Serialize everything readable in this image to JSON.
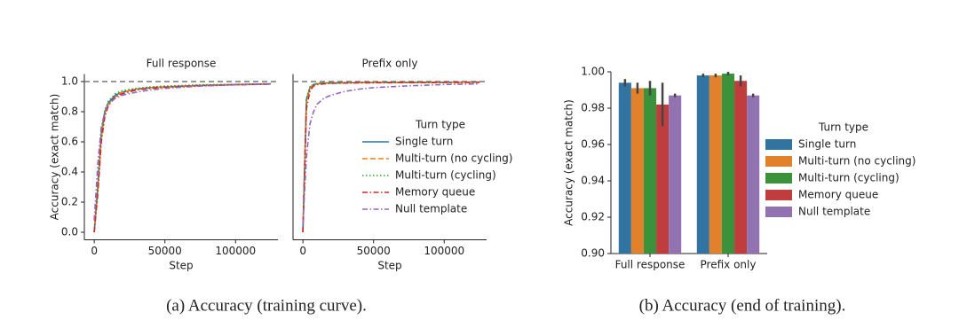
{
  "chart_data": [
    {
      "type": "line",
      "title": "Full response",
      "xlabel": "Step",
      "ylabel": "Accuracy (exact match)",
      "x": [
        0,
        2500,
        5000,
        7500,
        10000,
        15000,
        20000,
        30000,
        40000,
        50000,
        75000,
        100000,
        125000
      ],
      "series": [
        {
          "color": "#1f77b4",
          "dash": "solid",
          "values": [
            0.0,
            0.3,
            0.65,
            0.8,
            0.86,
            0.91,
            0.93,
            0.95,
            0.96,
            0.965,
            0.975,
            0.98,
            0.985
          ]
        },
        {
          "color": "#ff7f0e",
          "dash": "dashed",
          "values": [
            0.0,
            0.28,
            0.63,
            0.79,
            0.85,
            0.9,
            0.93,
            0.95,
            0.96,
            0.965,
            0.975,
            0.98,
            0.985
          ]
        },
        {
          "color": "#2ca02c",
          "dash": "dotted",
          "values": [
            0.0,
            0.3,
            0.66,
            0.81,
            0.87,
            0.92,
            0.94,
            0.955,
            0.965,
            0.97,
            0.978,
            0.982,
            0.985
          ]
        },
        {
          "color": "#d62728",
          "dash": "dashdot",
          "values": [
            0.0,
            0.25,
            0.6,
            0.77,
            0.84,
            0.9,
            0.92,
            0.945,
            0.955,
            0.962,
            0.972,
            0.978,
            0.983
          ]
        },
        {
          "color": "#9467bd",
          "dash": "dashdot",
          "values": [
            0.08,
            0.45,
            0.7,
            0.8,
            0.85,
            0.89,
            0.91,
            0.93,
            0.945,
            0.955,
            0.97,
            0.978,
            0.983
          ]
        }
      ],
      "reference_line": 1.0,
      "xlim": [
        -7000,
        130000
      ],
      "ylim": [
        -0.05,
        1.05
      ],
      "xticks": [
        0,
        50000,
        100000
      ],
      "yticks": [
        {
          "value": 0.0,
          "label": "0.0"
        },
        0.2,
        0.4,
        0.6,
        0.8,
        {
          "value": 1.0,
          "label": "1.0"
        }
      ]
    },
    {
      "type": "line",
      "title": "Prefix only",
      "xlabel": "Step",
      "x": [
        0,
        2500,
        5000,
        7500,
        10000,
        15000,
        20000,
        30000,
        40000,
        50000,
        75000,
        100000,
        125000
      ],
      "legend_title": "Turn type",
      "legend": "right",
      "series": [
        {
          "name": "Single turn",
          "color": "#1f77b4",
          "dash": "solid",
          "values": [
            0.0,
            0.88,
            0.96,
            0.98,
            0.985,
            0.99,
            0.99,
            0.992,
            0.993,
            0.994,
            0.995,
            0.995,
            0.996
          ]
        },
        {
          "name": "Multi-turn (no cycling)",
          "color": "#ff7f0e",
          "dash": "dashed",
          "values": [
            0.0,
            0.87,
            0.955,
            0.978,
            0.985,
            0.99,
            0.99,
            0.992,
            0.993,
            0.994,
            0.995,
            0.995,
            0.996
          ]
        },
        {
          "name": "Multi-turn (cycling)",
          "color": "#2ca02c",
          "dash": "dotted",
          "values": [
            0.0,
            0.89,
            0.965,
            0.982,
            0.988,
            0.991,
            0.992,
            0.993,
            0.994,
            0.995,
            0.996,
            0.996,
            0.997
          ]
        },
        {
          "name": "Memory queue",
          "color": "#d62728",
          "dash": "dashdot",
          "values": [
            0.0,
            0.82,
            0.94,
            0.97,
            0.98,
            0.985,
            0.988,
            0.99,
            0.991,
            0.992,
            0.993,
            0.994,
            0.995
          ]
        },
        {
          "name": "Null template",
          "color": "#9467bd",
          "dash": "dashdot",
          "values": [
            0.05,
            0.5,
            0.72,
            0.8,
            0.85,
            0.89,
            0.91,
            0.935,
            0.95,
            0.96,
            0.972,
            0.98,
            0.985
          ]
        }
      ],
      "reference_line": 1.0,
      "xlim": [
        -7000,
        130000
      ],
      "ylim": [
        -0.05,
        1.05
      ],
      "xticks": [
        0,
        50000,
        100000
      ]
    },
    {
      "type": "bar",
      "ylabel": "Accuracy (exact match)",
      "categories": [
        "Full response",
        "Prefix only"
      ],
      "legend_title": "Turn type",
      "legend": "right",
      "series": [
        {
          "name": "Single turn",
          "color": "#3274a1",
          "values": [
            0.994,
            0.998
          ],
          "errors": [
            0.002,
            0.001
          ]
        },
        {
          "name": "Multi-turn (no cycling)",
          "color": "#e1812c",
          "values": [
            0.991,
            0.998
          ],
          "errors": [
            0.003,
            0.001
          ]
        },
        {
          "name": "Multi-turn (cycling)",
          "color": "#3a923a",
          "values": [
            0.991,
            0.999
          ],
          "errors": [
            0.004,
            0.001
          ]
        },
        {
          "name": "Memory queue",
          "color": "#c03d3e",
          "values": [
            0.982,
            0.995
          ],
          "errors": [
            0.012,
            0.003
          ]
        },
        {
          "name": "Null template",
          "color": "#9372b2",
          "values": [
            0.987,
            0.987
          ],
          "errors": [
            0.001,
            0.001
          ]
        }
      ],
      "ylim": [
        0.9,
        1.0
      ],
      "yticks": [
        {
          "value": 0.9,
          "label": "0.90"
        },
        0.92,
        0.94,
        0.96,
        0.98,
        {
          "value": 1.0,
          "label": "1.00"
        }
      ]
    }
  ],
  "captions": [
    "(a) Accuracy (training curve).",
    "(b) Accuracy (end of training)."
  ]
}
